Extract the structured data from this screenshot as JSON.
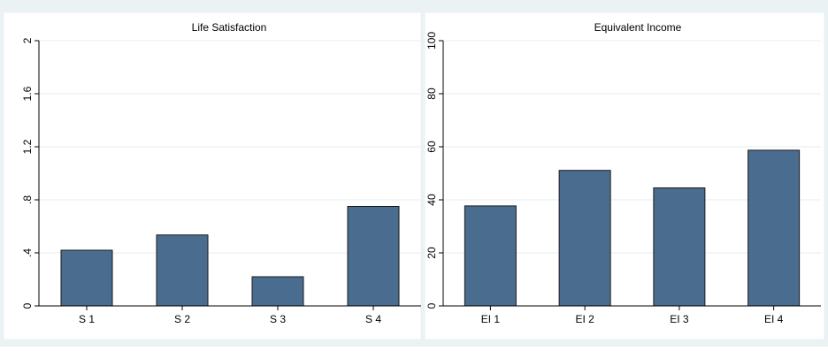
{
  "chart_data": [
    {
      "type": "bar",
      "title": "Life Satisfaction",
      "categories": [
        "S 1",
        "S 2",
        "S 3",
        "S 4"
      ],
      "values": [
        0.42,
        0.535,
        0.22,
        0.75
      ],
      "ylim": [
        0,
        2
      ],
      "yticks": [
        0,
        0.4,
        0.8,
        1.2,
        1.6,
        2
      ],
      "ytick_labels": [
        "0",
        ".4",
        ".8",
        "1.2",
        "1.6",
        "2"
      ],
      "grid": true,
      "colors": {
        "bar": "#4a6d8f",
        "bar_edge": "#1a1a1a"
      }
    },
    {
      "type": "bar",
      "title": "Equivalent Income",
      "categories": [
        "EI 1",
        "EI 2",
        "EI 3",
        "EI 4"
      ],
      "values": [
        37.7,
        51.1,
        44.5,
        58.7
      ],
      "ylim": [
        0,
        100
      ],
      "yticks": [
        0,
        20,
        40,
        60,
        80,
        100
      ],
      "ytick_labels": [
        "0",
        "20",
        "40",
        "60",
        "80",
        "100"
      ],
      "grid": true,
      "colors": {
        "bar": "#4a6d8f",
        "bar_edge": "#1a1a1a"
      }
    }
  ]
}
